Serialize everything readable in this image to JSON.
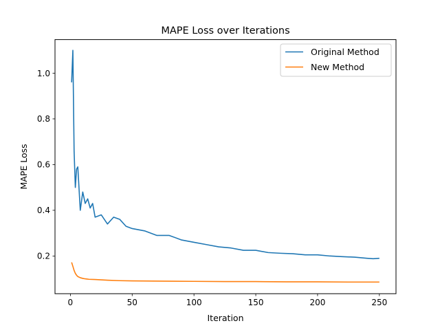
{
  "chart_data": {
    "type": "line",
    "title": "MAPE Loss over Iterations",
    "xlabel": "Iteration",
    "ylabel": "MAPE Loss",
    "xlim": [
      -12.45,
      263.45
    ],
    "ylim": [
      0.035,
      1.147
    ],
    "xticks": [
      0,
      50,
      100,
      150,
      200,
      250
    ],
    "yticks": [
      0.2,
      0.4,
      0.6,
      0.8,
      1.0
    ],
    "ytick_labels": [
      "0.2",
      "0.4",
      "0.6",
      "0.8",
      "1.0"
    ],
    "grid": false,
    "legend_position": "upper right",
    "series": [
      {
        "name": "Original Method",
        "color": "#1f77b4",
        "x": [
          1,
          2,
          3,
          4,
          5,
          6,
          8,
          10,
          12,
          14,
          16,
          18,
          20,
          25,
          30,
          35,
          40,
          45,
          50,
          60,
          70,
          80,
          90,
          100,
          110,
          120,
          130,
          140,
          150,
          160,
          170,
          180,
          190,
          200,
          210,
          220,
          230,
          240,
          245,
          250
        ],
        "y": [
          0.96,
          1.1,
          0.66,
          0.5,
          0.58,
          0.59,
          0.4,
          0.48,
          0.43,
          0.45,
          0.41,
          0.43,
          0.37,
          0.38,
          0.34,
          0.37,
          0.36,
          0.33,
          0.32,
          0.31,
          0.29,
          0.29,
          0.27,
          0.26,
          0.25,
          0.24,
          0.235,
          0.225,
          0.225,
          0.215,
          0.212,
          0.21,
          0.205,
          0.205,
          0.2,
          0.197,
          0.195,
          0.19,
          0.188,
          0.19
        ]
      },
      {
        "name": "New Method",
        "color": "#ff7f0e",
        "x": [
          1,
          2,
          3,
          4,
          5,
          6,
          8,
          10,
          12,
          15,
          20,
          30,
          40,
          50,
          75,
          100,
          125,
          150,
          175,
          200,
          225,
          250
        ],
        "y": [
          0.172,
          0.155,
          0.137,
          0.124,
          0.116,
          0.11,
          0.105,
          0.102,
          0.1,
          0.098,
          0.097,
          0.094,
          0.092,
          0.091,
          0.09,
          0.089,
          0.088,
          0.088,
          0.087,
          0.087,
          0.086,
          0.086
        ]
      }
    ]
  }
}
